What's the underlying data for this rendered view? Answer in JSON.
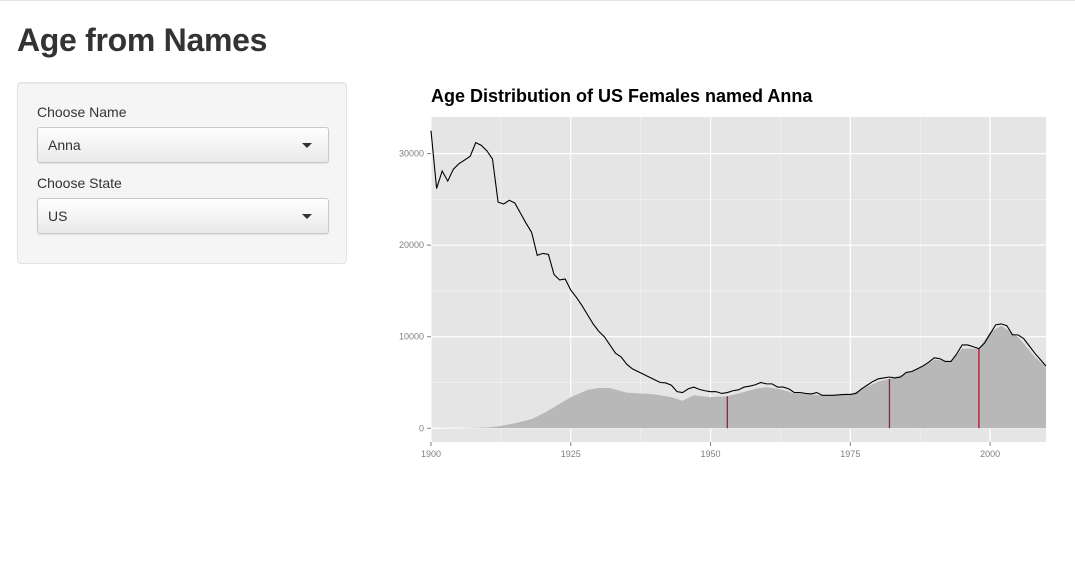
{
  "page": {
    "title": "Age from Names"
  },
  "sidebar": {
    "name_control": {
      "label": "Choose Name",
      "selected": "Anna"
    },
    "state_control": {
      "label": "Choose State",
      "selected": "US"
    }
  },
  "colors": {
    "panel_bg": "#e5e5e5",
    "grid": "#ffffff",
    "area_fill": "#b8b8b8",
    "line": "#000000",
    "marker": "#b2182b",
    "tick_text": "#7f7f7f"
  },
  "chart_data": {
    "type": "line",
    "title": "Age Distribution of US Females named Anna",
    "xlabel": "",
    "ylabel": "",
    "xlim": [
      1900,
      2010
    ],
    "ylim": [
      -1500,
      34000
    ],
    "x_ticks": [
      1900,
      1925,
      1950,
      1975,
      2000
    ],
    "x_tick_labels": [
      "1900",
      "1925",
      "1950",
      "1975",
      "2000"
    ],
    "y_ticks": [
      0,
      10000,
      20000,
      30000
    ],
    "y_tick_labels": [
      "0",
      "10000",
      "20000",
      "30000"
    ],
    "grid": true,
    "series": [
      {
        "kind": "line",
        "x": [
          1900,
          1901,
          1902,
          1903,
          1904,
          1905,
          1906,
          1907,
          1908,
          1909,
          1910,
          1911,
          1912,
          1913,
          1914,
          1915,
          1916,
          1917,
          1918,
          1919,
          1920,
          1921,
          1922,
          1923,
          1924,
          1925,
          1926,
          1927,
          1928,
          1929,
          1930,
          1931,
          1932,
          1933,
          1934,
          1935,
          1936,
          1937,
          1938,
          1939,
          1940,
          1941,
          1942,
          1943,
          1944,
          1945,
          1946,
          1947,
          1948,
          1949,
          1950,
          1951,
          1952,
          1953,
          1954,
          1955,
          1956,
          1957,
          1958,
          1959,
          1960,
          1961,
          1962,
          1963,
          1964,
          1965,
          1966,
          1967,
          1968,
          1969,
          1970,
          1971,
          1972,
          1973,
          1974,
          1975,
          1976,
          1977,
          1978,
          1979,
          1980,
          1981,
          1982,
          1983,
          1984,
          1985,
          1986,
          1987,
          1988,
          1989,
          1990,
          1991,
          1992,
          1993,
          1994,
          1995,
          1996,
          1997,
          1998,
          1999,
          2000,
          2001,
          2002,
          2003,
          2004,
          2005,
          2006,
          2007,
          2008,
          2009,
          2010
        ],
        "y": [
          32500,
          26200,
          28100,
          27000,
          28300,
          28900,
          29300,
          29700,
          31200,
          30900,
          30300,
          29400,
          24700,
          24500,
          24900,
          24600,
          23500,
          22400,
          21400,
          18900,
          19100,
          19000,
          16800,
          16200,
          16300,
          15100,
          14300,
          13400,
          12400,
          11400,
          10600,
          10000,
          9100,
          8200,
          7800,
          7000,
          6500,
          6200,
          5900,
          5600,
          5300,
          5000,
          4950,
          4700,
          4000,
          3900,
          4300,
          4500,
          4250,
          4100,
          4000,
          4000,
          3800,
          3900,
          4100,
          4200,
          4500,
          4600,
          4750,
          5000,
          4850,
          4850,
          4500,
          4500,
          4300,
          3900,
          3900,
          3800,
          3750,
          3900,
          3600,
          3600,
          3600,
          3650,
          3700,
          3700,
          3800,
          4300,
          4700,
          5100,
          5400,
          5500,
          5600,
          5500,
          5600,
          6100,
          6200,
          6500,
          6800,
          7200,
          7700,
          7600,
          7300,
          7300,
          8100,
          9100,
          9100,
          8900,
          8700,
          9300,
          10300,
          11300,
          11400,
          11200,
          10200,
          10200,
          9800,
          9000,
          8200,
          7500,
          6800
        ]
      },
      {
        "kind": "area",
        "x": [
          1900,
          1905,
          1910,
          1912,
          1915,
          1918,
          1920,
          1922,
          1925,
          1928,
          1930,
          1932,
          1935,
          1940,
          1943,
          1945,
          1947,
          1950,
          1953,
          1955,
          1958,
          1960,
          1963,
          1965,
          1970,
          1975,
          1980,
          1982,
          1985,
          1988,
          1990,
          1993,
          1995,
          1998,
          2000,
          2002,
          2005,
          2008,
          2010
        ],
        "y": [
          0,
          20,
          80,
          200,
          550,
          1000,
          1600,
          2300,
          3400,
          4200,
          4400,
          4400,
          3900,
          3700,
          3400,
          3000,
          3600,
          3400,
          3500,
          3800,
          4300,
          4500,
          4200,
          3800,
          3600,
          3700,
          5100,
          5400,
          6000,
          6700,
          7500,
          7300,
          8700,
          8700,
          10500,
          11200,
          10000,
          7800,
          6700
        ]
      }
    ],
    "markers": [
      1953,
      1982,
      1998
    ]
  }
}
